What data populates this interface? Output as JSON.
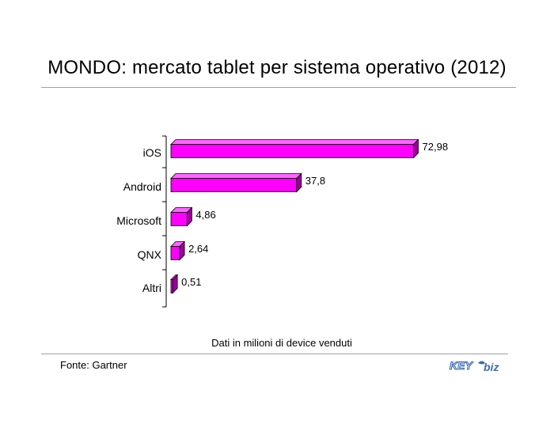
{
  "title": "MONDO: mercato tablet per sistema operativo (2012)",
  "note": "Dati in milioni di device venduti",
  "source": "Fonte: Gartner",
  "logo": {
    "text_left": "KEY",
    "text_right": "biz"
  },
  "colors": {
    "bar_front": "#ff00ff",
    "bar_top": "#ff66ff",
    "bar_side": "#990099",
    "axis": "#000000"
  },
  "chart_data": {
    "type": "bar",
    "orientation": "horizontal",
    "categories": [
      "iOS",
      "Android",
      "Microsoft",
      "QNX",
      "Altri"
    ],
    "values": [
      72.98,
      37.8,
      4.86,
      2.64,
      0.51
    ],
    "value_labels": [
      "72,98",
      "37,8",
      "4,86",
      "2,64",
      "0,51"
    ],
    "grid": false,
    "legend": "none",
    "xlim": [
      0,
      75
    ]
  }
}
